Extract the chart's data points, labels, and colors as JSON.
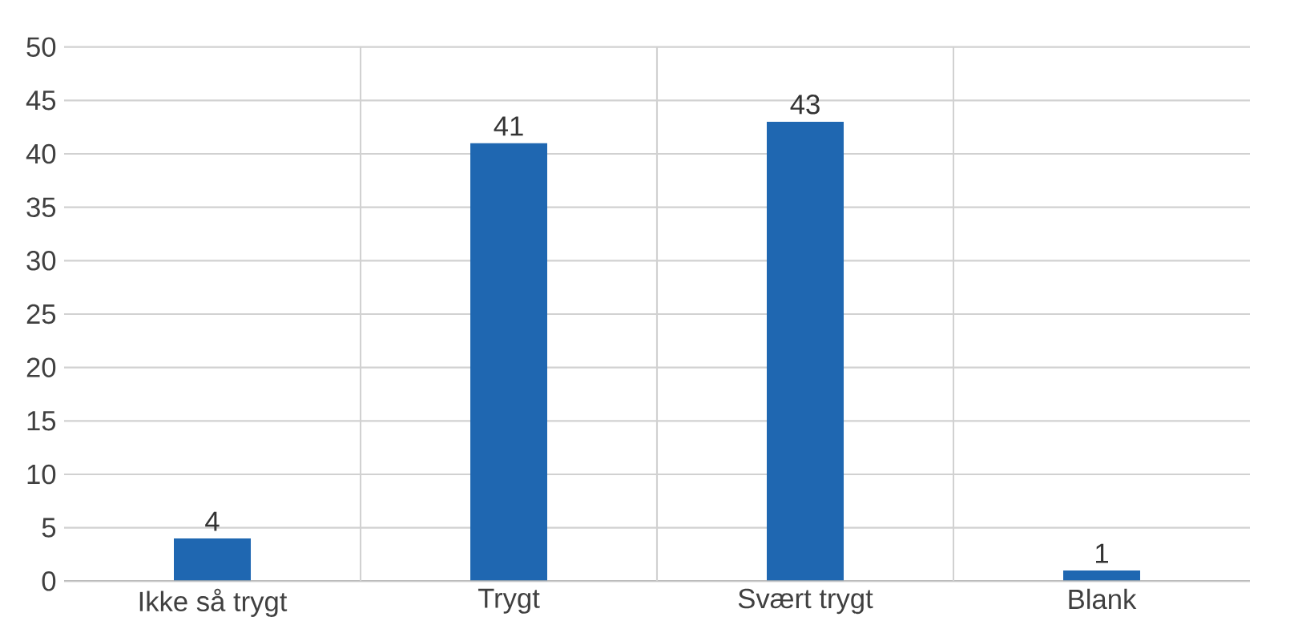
{
  "chart_data": {
    "type": "bar",
    "categories": [
      "Ikke så trygt",
      "Trygt",
      "Svært trygt",
      "Blank"
    ],
    "values": [
      4,
      41,
      43,
      1
    ],
    "color": "#1f67b1",
    "ylim": [
      0,
      50
    ],
    "yticks": [
      0,
      5,
      10,
      15,
      20,
      25,
      30,
      35,
      40,
      45,
      50
    ],
    "grid": "y",
    "data_labels": true
  }
}
